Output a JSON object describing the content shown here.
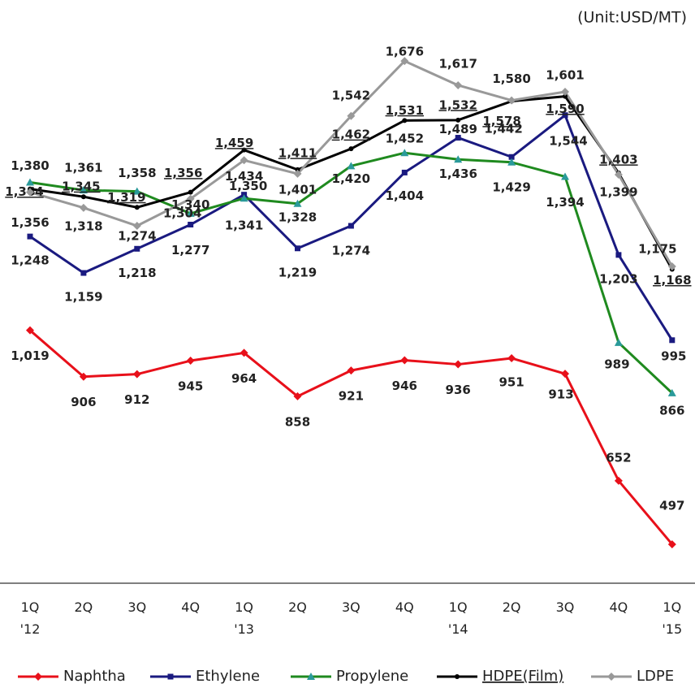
{
  "chart_data": {
    "type": "line",
    "unit": "(Unit:USD/MT)",
    "categories": [
      "1Q '12",
      "2Q",
      "3Q",
      "4Q",
      "1Q '13",
      "2Q",
      "3Q",
      "4Q",
      "1Q '14",
      "2Q",
      "3Q",
      "4Q",
      "1Q '15"
    ],
    "ylim": [
      402,
      1825
    ],
    "series": [
      {
        "name": "Naphtha",
        "color": "#e8101a",
        "values": [
          1019,
          906,
          912,
          945,
          964,
          858,
          921,
          946,
          936,
          951,
          913,
          652,
          497
        ],
        "value_labels": [
          "1,019",
          "906",
          "912",
          "945",
          "964",
          "858",
          "921",
          "946",
          "936",
          "951",
          "913",
          "652",
          "497"
        ]
      },
      {
        "name": "Ethylene",
        "color": "#1a1a80",
        "values": [
          1248,
          1159,
          1218,
          1277,
          1350,
          1219,
          1274,
          1404,
          1489,
          1442,
          1544,
          1203,
          995
        ],
        "value_labels": [
          "1,248",
          "1,159",
          "1,218",
          "1,277",
          "1,350",
          "1,219",
          "1,274",
          "1,404",
          "1,489",
          "1,442",
          "1,544",
          "1,203",
          "995"
        ]
      },
      {
        "name": "Propylene",
        "color": "#1f8a1f",
        "values": [
          1380,
          1361,
          1358,
          1304,
          1341,
          1328,
          1420,
          1452,
          1436,
          1429,
          1394,
          989,
          866
        ],
        "value_labels": [
          "1,380",
          "1,361",
          "1,358",
          "1,304",
          "1,341",
          "1,328",
          "1,420",
          "1,452",
          "1,436",
          "1,429",
          "1,394",
          "989",
          "866"
        ]
      },
      {
        "name": "HDPE(Film)",
        "color": "#000000",
        "values": [
          1364,
          1345,
          1319,
          1356,
          1459,
          1411,
          1462,
          1531,
          1532,
          1578,
          1590,
          1403,
          1168
        ],
        "value_labels": [
          "1,364",
          "1,345",
          "1,319",
          "1,356",
          "1,459",
          "1,411",
          "1,462",
          "1,531",
          "1,532",
          "1,578",
          "1,590",
          "1,403",
          "1,168"
        ]
      },
      {
        "name": "LDPE",
        "color": "#999999",
        "values": [
          1356,
          1318,
          1274,
          1340,
          1434,
          1401,
          1542,
          1676,
          1617,
          1580,
          1601,
          1399,
          1175
        ],
        "value_labels": [
          "1,356",
          "1,318",
          "1,274",
          "1,340",
          "1,434",
          "1,401",
          "1,542",
          "1,676",
          "1,617",
          "1,580",
          "1,601",
          "1,399",
          "1,175"
        ]
      }
    ]
  }
}
